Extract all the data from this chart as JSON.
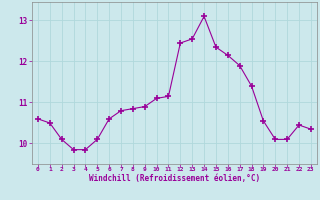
{
  "x": [
    0,
    1,
    2,
    3,
    4,
    5,
    6,
    7,
    8,
    9,
    10,
    11,
    12,
    13,
    14,
    15,
    16,
    17,
    18,
    19,
    20,
    21,
    22,
    23
  ],
  "y": [
    10.6,
    10.5,
    10.1,
    9.85,
    9.85,
    10.1,
    10.6,
    10.8,
    10.85,
    10.9,
    11.1,
    11.15,
    12.45,
    12.55,
    13.1,
    12.35,
    12.15,
    11.9,
    11.4,
    10.55,
    10.1,
    10.1,
    10.45,
    10.35
  ],
  "line_color": "#990099",
  "marker_color": "#990099",
  "bg_color": "#cce8ec",
  "grid_color": "#b0d8dc",
  "tick_color": "#990099",
  "label_color": "#990099",
  "xlabel": "Windchill (Refroidissement éolien,°C)",
  "ylim_min": 9.5,
  "ylim_max": 13.45,
  "xlim_min": -0.5,
  "xlim_max": 23.5,
  "yticks": [
    10,
    11,
    12,
    13
  ],
  "xticks": [
    0,
    1,
    2,
    3,
    4,
    5,
    6,
    7,
    8,
    9,
    10,
    11,
    12,
    13,
    14,
    15,
    16,
    17,
    18,
    19,
    20,
    21,
    22,
    23
  ]
}
